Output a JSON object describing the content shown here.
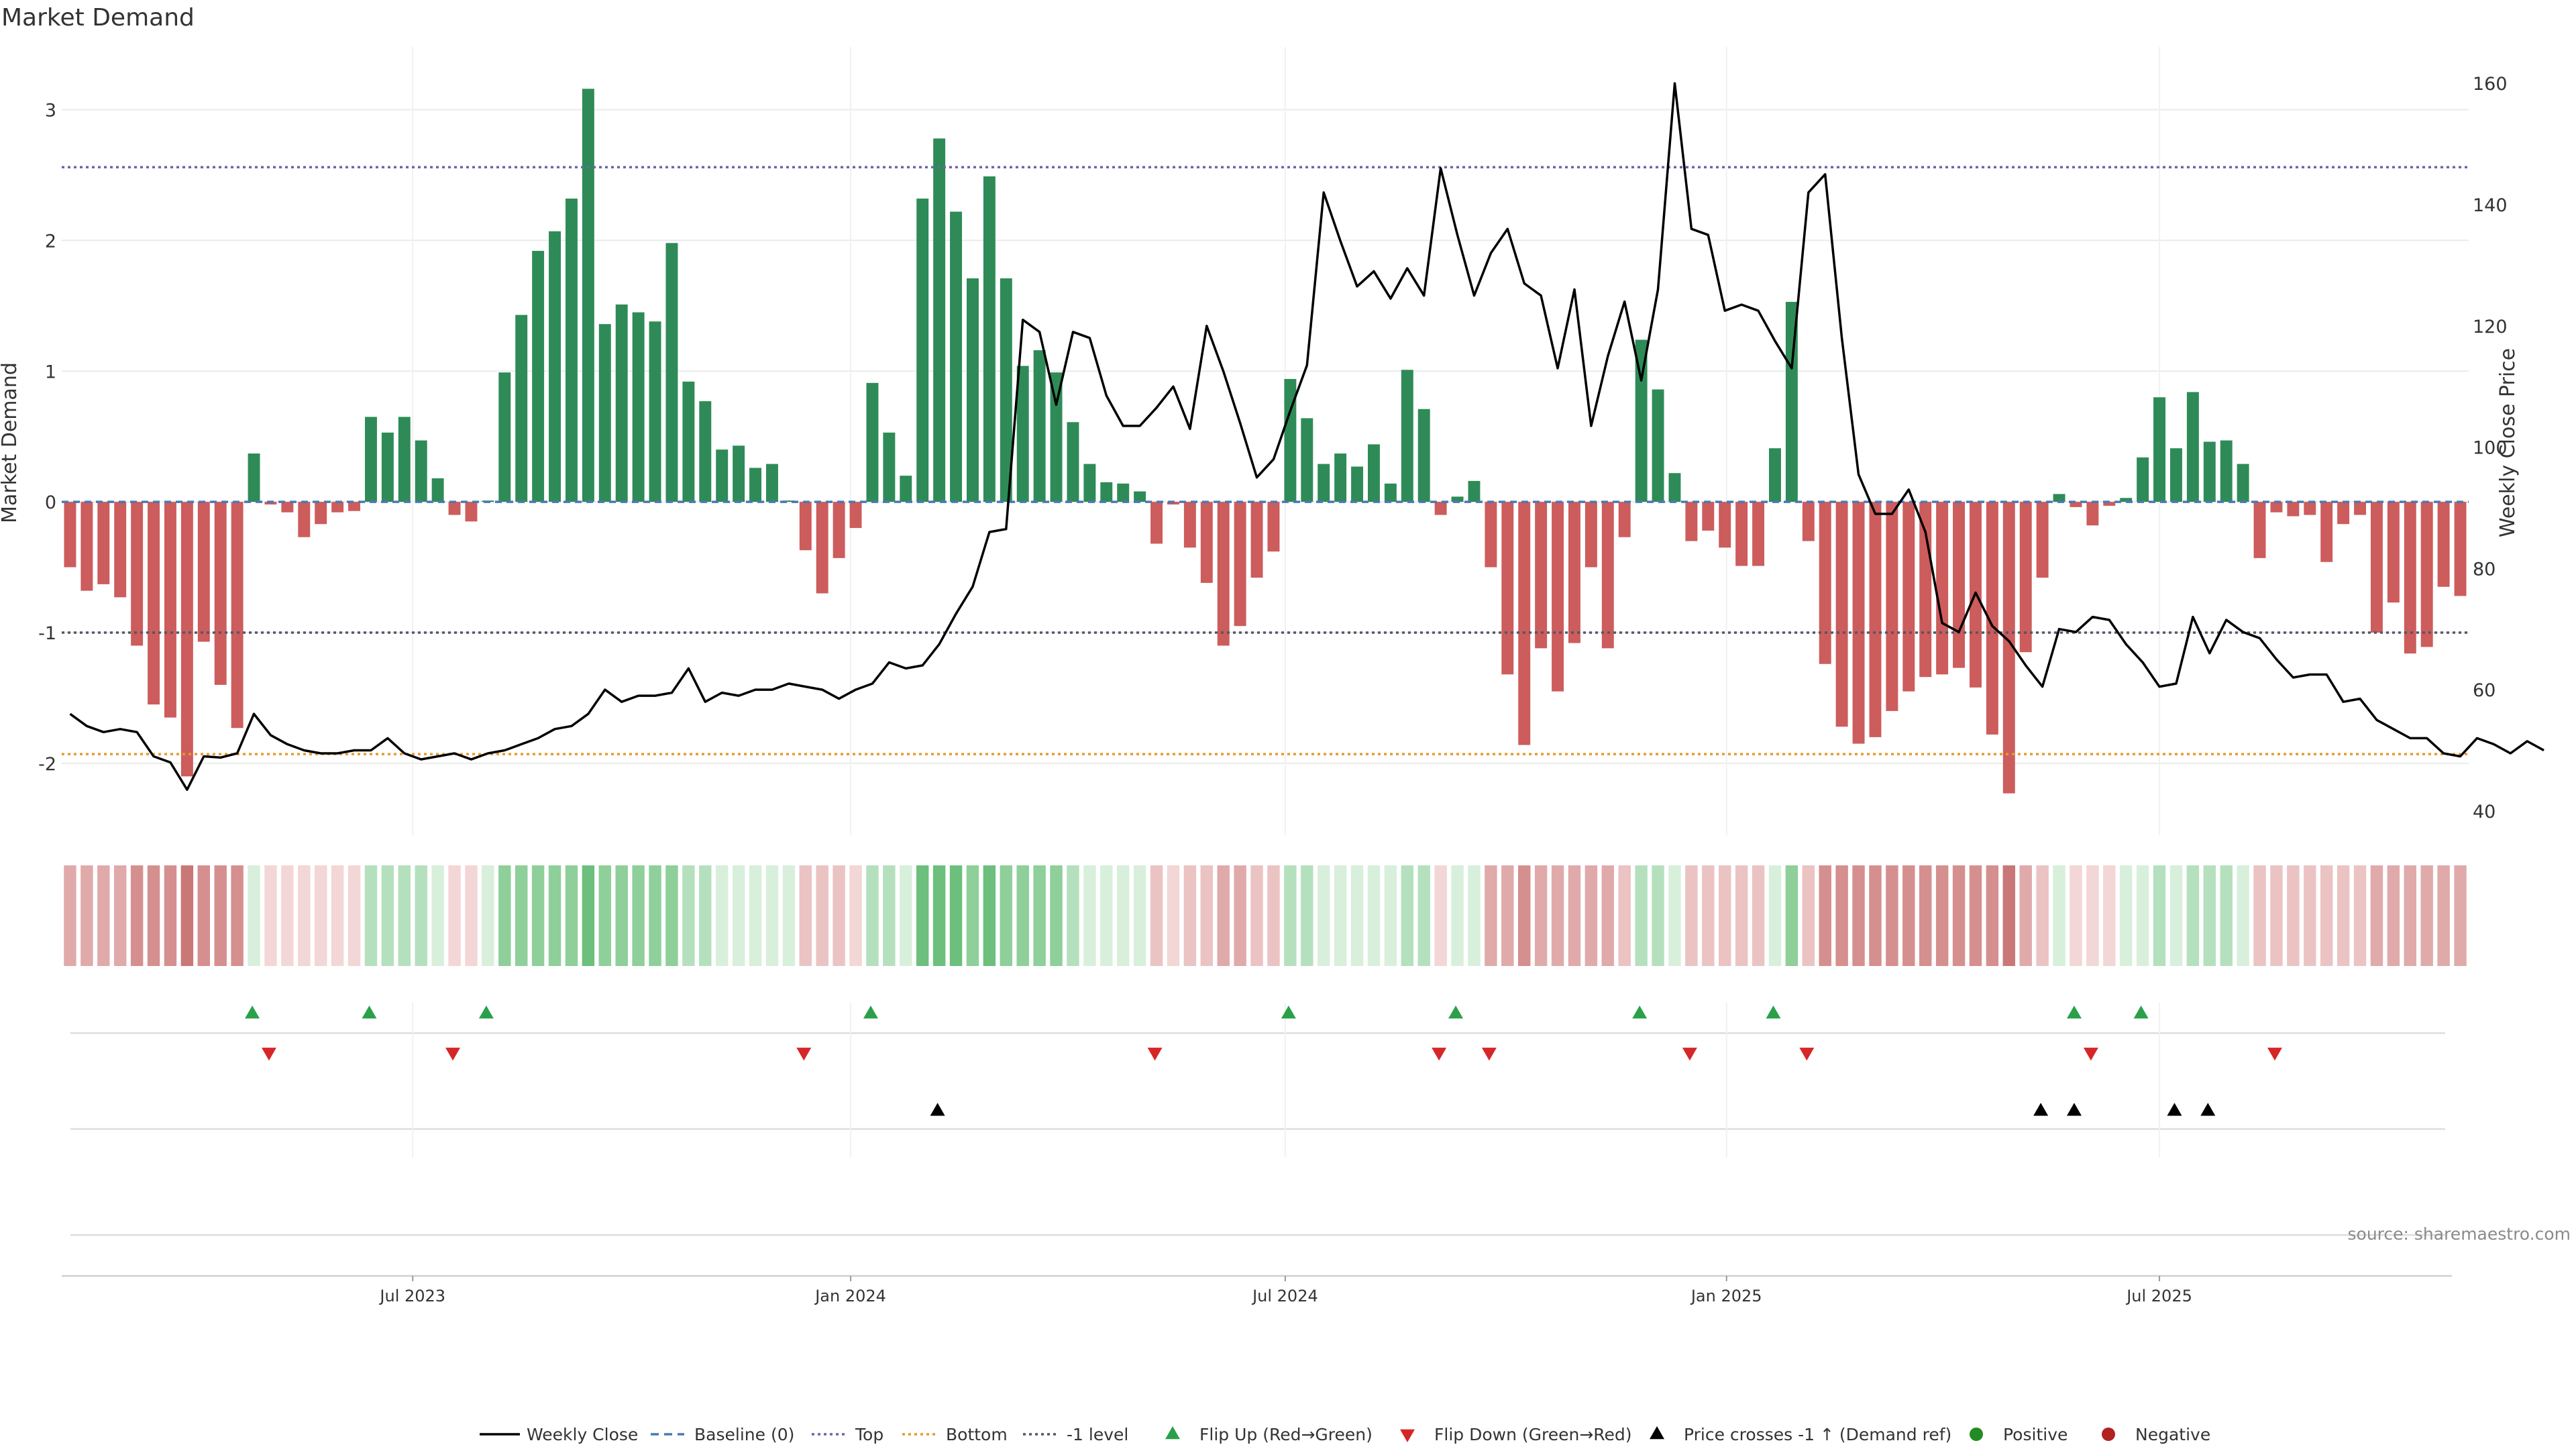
{
  "chart_data": {
    "type": "bar",
    "title": "Market Demand",
    "ylabel_left": "Market Demand",
    "ylabel_right": "Weekly Close Price",
    "ylim_left": [
      -2.55,
      3.48
    ],
    "ylim_right": [
      36,
      166
    ],
    "yticks_left": [
      3,
      2,
      1,
      0,
      -1,
      -2
    ],
    "yticks_right": [
      160,
      140,
      120,
      100,
      80,
      60,
      40
    ],
    "xlim": [
      0,
      144
    ],
    "xticks": [
      {
        "label": "Jul 2023",
        "x": 21
      },
      {
        "label": "Jan 2024",
        "x": 47.2
      },
      {
        "label": "Jul 2024",
        "x": 73.2
      },
      {
        "label": "Jan 2025",
        "x": 99.6
      },
      {
        "label": "Jul 2025",
        "x": 125.5
      }
    ],
    "reference_lines": [
      {
        "name": "Baseline (0)",
        "value": 0,
        "color": "#4a78b5",
        "style": "dashed"
      },
      {
        "name": "Top",
        "value": 2.56,
        "color": "#6f63a8",
        "style": "dotted"
      },
      {
        "name": "Bottom",
        "value": -1.93,
        "color": "#e69a2e",
        "style": "dotted"
      },
      {
        "name": "-1 level",
        "value": -1,
        "color": "#555566",
        "style": "dotted"
      }
    ],
    "demand_values": [
      -0.5,
      -0.68,
      -0.63,
      -0.73,
      -1.1,
      -1.55,
      -1.65,
      -2.1,
      -1.07,
      -1.4,
      -1.73,
      0.37,
      -0.02,
      -0.08,
      -0.27,
      -0.17,
      -0.08,
      -0.07,
      0.65,
      0.53,
      0.65,
      0.47,
      0.18,
      -0.1,
      -0.15,
      0.01,
      0.99,
      1.43,
      1.92,
      2.07,
      2.32,
      3.16,
      1.36,
      1.51,
      1.45,
      1.38,
      1.98,
      0.92,
      0.77,
      0.4,
      0.43,
      0.26,
      0.29,
      0.01,
      -0.37,
      -0.7,
      -0.43,
      -0.2,
      0.91,
      0.53,
      0.2,
      2.32,
      2.78,
      2.22,
      1.71,
      2.49,
      1.71,
      1.04,
      1.16,
      0.99,
      0.61,
      0.29,
      0.15,
      0.14,
      0.08,
      -0.32,
      -0.02,
      -0.35,
      -0.62,
      -1.1,
      -0.95,
      -0.58,
      -0.38,
      0.94,
      0.64,
      0.29,
      0.37,
      0.27,
      0.44,
      0.14,
      1.01,
      0.71,
      -0.1,
      0.04,
      0.16,
      -0.5,
      -1.32,
      -1.86,
      -1.12,
      -1.45,
      -1.08,
      -0.5,
      -1.12,
      -0.27,
      1.24,
      0.86,
      0.22,
      -0.3,
      -0.22,
      -0.35,
      -0.49,
      -0.49,
      0.41,
      1.53,
      -0.3,
      -1.24,
      -1.72,
      -1.85,
      -1.8,
      -1.6,
      -1.45,
      -1.34,
      -1.32,
      -1.27,
      -1.42,
      -1.78,
      -2.23,
      -1.15,
      -0.58,
      0.06,
      -0.04,
      -0.18,
      -0.03,
      0.03,
      0.34,
      0.8,
      0.41,
      0.84,
      0.46,
      0.47,
      0.29,
      -0.43,
      -0.08,
      -0.11,
      -0.1,
      -0.46,
      -0.17,
      -0.1,
      -1.0,
      -0.77,
      -1.16,
      -1.11,
      -0.65,
      -0.72
    ],
    "close_values": [
      56,
      54,
      53,
      53.5,
      53,
      49,
      48,
      43.5,
      49,
      48.8,
      49.5,
      56,
      52.5,
      51,
      50,
      49.5,
      49.5,
      50,
      50,
      52,
      49.5,
      48.5,
      49,
      49.5,
      48.5,
      49.5,
      50,
      51,
      52,
      53.5,
      54,
      56,
      60,
      58,
      59,
      59,
      59.5,
      63.5,
      58,
      59.5,
      59,
      60,
      60,
      61,
      60.5,
      60,
      58.5,
      60,
      61,
      64.5,
      63.5,
      64,
      67.5,
      72.5,
      77,
      86,
      86.5,
      121,
      119,
      107,
      119,
      118,
      108.5,
      103.5,
      103.5,
      106.5,
      110,
      103,
      120,
      112.5,
      104,
      95,
      98,
      106,
      113.5,
      142,
      134,
      126.5,
      129,
      124.5,
      129.5,
      125,
      146,
      135,
      125,
      132,
      136,
      127,
      125,
      113,
      126,
      103.5,
      115,
      124,
      111,
      126,
      160,
      136,
      135,
      122.5,
      123.5,
      122.5,
      117.5,
      113,
      142,
      145,
      118,
      95.5,
      89,
      89,
      93,
      86,
      71,
      69.5,
      76,
      70.5,
      68,
      64,
      60.5,
      70,
      69.5,
      72,
      71.5,
      67.5,
      64.5,
      60.5,
      61,
      72,
      66,
      71.5,
      69.5,
      68.5,
      65,
      62,
      62.5,
      62.5,
      58,
      58.5,
      55,
      53.5,
      52,
      52,
      49.5,
      49,
      52,
      51,
      49.5,
      51.5,
      50
    ],
    "regime_strips": [
      -3,
      -3,
      -3,
      -3,
      -4,
      -4,
      -4,
      -5,
      -4,
      -4,
      -4,
      1,
      -1,
      -1,
      -1,
      -1,
      -1,
      -1,
      2,
      2,
      2,
      2,
      1,
      -1,
      -1,
      1,
      3,
      3,
      3,
      3,
      3,
      4,
      3,
      3,
      3,
      3,
      3,
      2,
      2,
      1,
      1,
      1,
      1,
      1,
      -2,
      -2,
      -2,
      -1,
      2,
      2,
      1,
      4,
      4,
      4,
      3,
      4,
      3,
      3,
      3,
      3,
      2,
      1,
      1,
      1,
      1,
      -2,
      -1,
      -2,
      -2,
      -3,
      -3,
      -2,
      -2,
      2,
      2,
      1,
      1,
      1,
      1,
      1,
      2,
      2,
      -1,
      1,
      1,
      -3,
      -3,
      -4,
      -3,
      -3,
      -3,
      -3,
      -3,
      -2,
      2,
      2,
      1,
      -2,
      -2,
      -2,
      -2,
      -2,
      1,
      3,
      -2,
      -4,
      -4,
      -4,
      -4,
      -4,
      -4,
      -4,
      -4,
      -4,
      -4,
      -4,
      -5,
      -3,
      -2,
      1,
      -1,
      -1,
      -1,
      1,
      1,
      2,
      1,
      2,
      2,
      2,
      1,
      -2,
      -2,
      -2,
      -2,
      -2,
      -2,
      -2,
      -3,
      -3,
      -3,
      -3,
      -3,
      -3
    ],
    "flip_up_x": [
      11.4,
      18.4,
      25.4,
      48.4,
      73.4,
      83.4,
      94.4,
      102.4,
      120.4,
      124.4
    ],
    "flip_down_x": [
      12.4,
      23.4,
      44.4,
      65.4,
      82.4,
      85.4,
      97.4,
      104.4,
      121.4,
      132.4
    ],
    "price_cross_x": [
      52.4,
      118.4,
      120.4,
      126.4,
      128.4
    ],
    "legend": [
      {
        "label": "Weekly Close",
        "kind": "line",
        "color": "#000000"
      },
      {
        "label": "Baseline (0)",
        "kind": "dash",
        "color": "#4a78b5"
      },
      {
        "label": "Top",
        "kind": "dot",
        "color": "#6f63a8"
      },
      {
        "label": "Bottom",
        "kind": "dot",
        "color": "#e69a2e"
      },
      {
        "label": "-1 level",
        "kind": "dot",
        "color": "#555566"
      },
      {
        "label": "Flip Up (Red→Green)",
        "kind": "tri-up",
        "color": "#2aa04a"
      },
      {
        "label": "Flip Down (Green→Red)",
        "kind": "tri-down",
        "color": "#d62728"
      },
      {
        "label": "Price crosses -1 ↑ (Demand ref)",
        "kind": "tri-up",
        "color": "#000000"
      },
      {
        "label": "Positive",
        "kind": "circle",
        "color": "#228b22"
      },
      {
        "label": "Negative",
        "kind": "circle",
        "color": "#b22222"
      }
    ],
    "source": "source: sharemaestro.com",
    "colors": {
      "positive_bar": "#2e8b57",
      "negative_bar": "#cd5c5c",
      "close_line": "#000000"
    }
  }
}
